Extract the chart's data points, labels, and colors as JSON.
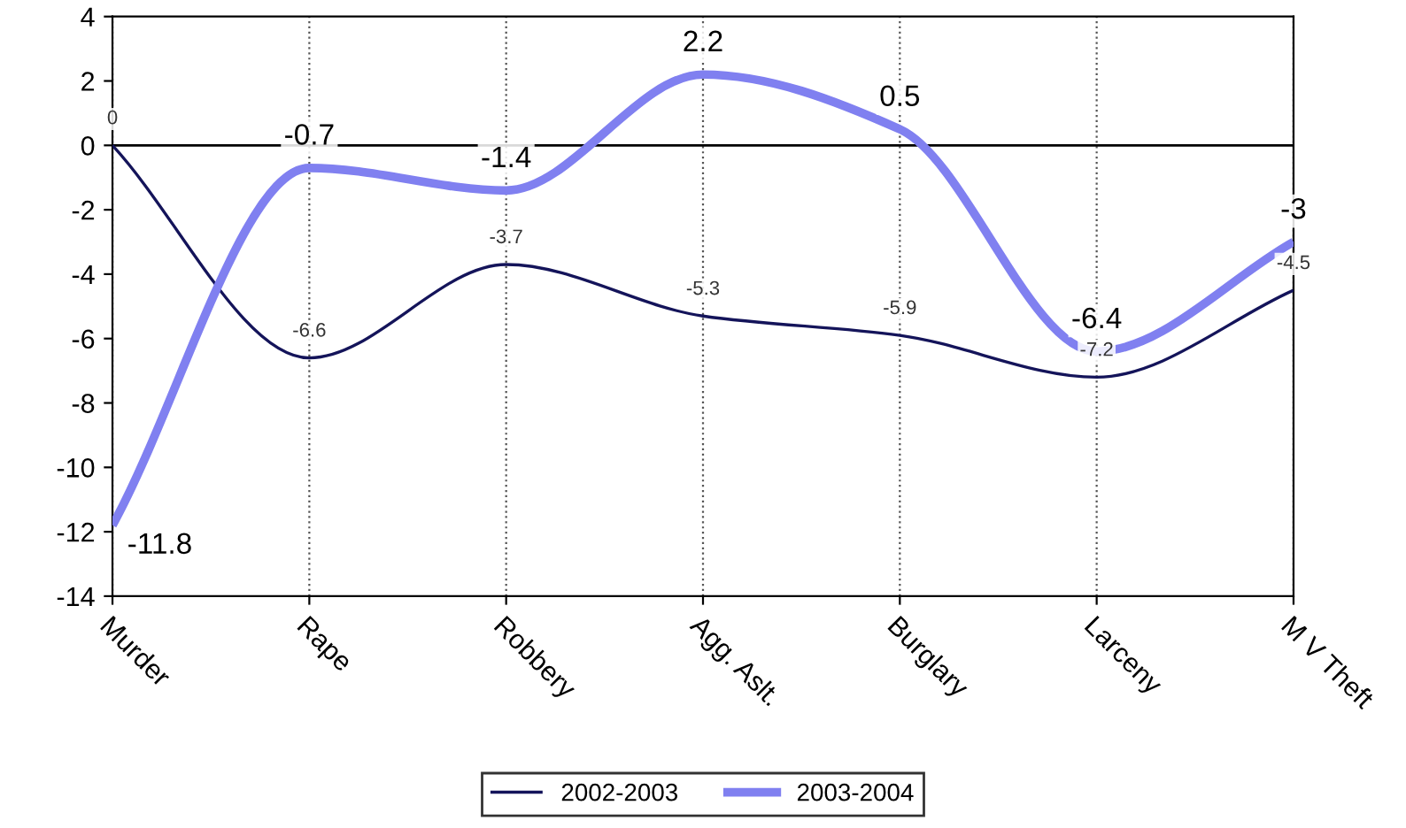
{
  "chart_data": {
    "type": "line",
    "categories": [
      "Murder",
      "Rape",
      "Robbery",
      "Agg. Aslt.",
      "Burglary",
      "Larceny",
      "M V Theft"
    ],
    "series": [
      {
        "name": "2002-2003",
        "color": "#14145a",
        "values": [
          0,
          -6.6,
          -3.7,
          -5.3,
          -5.9,
          -7.2,
          -4.5
        ]
      },
      {
        "name": "2003-2004",
        "color": "#8080f0",
        "values": [
          -11.8,
          -0.7,
          -1.4,
          2.2,
          0.5,
          -6.4,
          -3
        ]
      }
    ],
    "ylim": [
      -14,
      4
    ],
    "yticks": [
      -14,
      -12,
      -10,
      -8,
      -6,
      -4,
      -2,
      0,
      2,
      4
    ],
    "grid": "x",
    "legend": "bottom",
    "data_labels": true,
    "ref_lines": [
      {
        "axis": "y",
        "value": 0
      }
    ]
  }
}
